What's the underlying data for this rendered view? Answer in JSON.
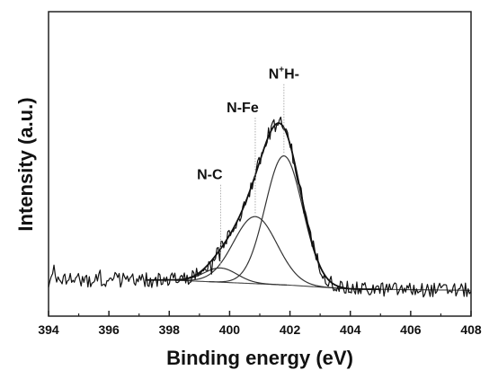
{
  "chart_data": {
    "type": "line",
    "title": "",
    "xlabel": "Binding energy (eV)",
    "ylabel": "Intensity (a.u.)",
    "xlim": [
      394,
      408
    ],
    "ylim": [
      0,
      1.18
    ],
    "x_ticks": [
      "394",
      "396",
      "398",
      "400",
      "402",
      "404",
      "406",
      "408"
    ],
    "y_ticks_labeled": false,
    "grid": false,
    "legend": "none",
    "baseline": {
      "x": [
        394,
        398,
        402,
        404,
        408
      ],
      "y": [
        0.14,
        0.14,
        0.12,
        0.105,
        0.1
      ]
    },
    "peaks": [
      {
        "label": "N-C",
        "label_prefix": "N-C",
        "label_sup": "",
        "label_suffix": "",
        "center": 399.7,
        "height": 0.055,
        "sigma": 0.55
      },
      {
        "label": "N-Fe",
        "label_prefix": "N-Fe",
        "label_sup": "",
        "label_suffix": "",
        "center": 400.85,
        "height": 0.26,
        "sigma": 0.72
      },
      {
        "label": "N+H-",
        "label_prefix": "N",
        "label_sup": "+",
        "label_suffix": "H-",
        "center": 401.8,
        "height": 0.5,
        "sigma": 0.62
      }
    ],
    "series": [
      {
        "role": "raw-data",
        "noise": 0.028
      },
      {
        "role": "fit-envelope"
      }
    ]
  }
}
